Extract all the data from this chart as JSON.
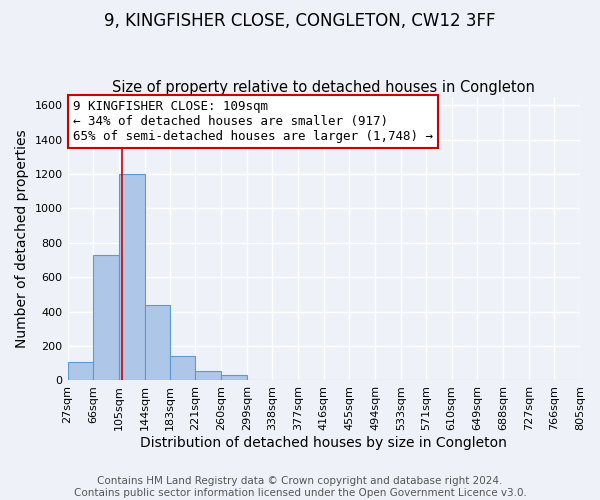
{
  "title": "9, KINGFISHER CLOSE, CONGLETON, CW12 3FF",
  "subtitle": "Size of property relative to detached houses in Congleton",
  "xlabel": "Distribution of detached houses by size in Congleton",
  "ylabel": "Number of detached properties",
  "bin_edges": [
    27,
    66,
    105,
    144,
    183,
    221,
    260,
    299,
    338,
    377,
    416,
    455,
    494,
    533,
    571,
    610,
    649,
    688,
    727,
    766,
    805
  ],
  "bin_heights": [
    110,
    730,
    1200,
    440,
    140,
    55,
    30,
    0,
    0,
    0,
    0,
    0,
    0,
    0,
    0,
    0,
    0,
    0,
    0,
    0
  ],
  "bar_color": "#aec6e8",
  "bar_edge_color": "#5b9bd5",
  "property_line_x": 109,
  "property_line_color": "#cc0000",
  "annotation_text": "9 KINGFISHER CLOSE: 109sqm\n← 34% of detached houses are smaller (917)\n65% of semi-detached houses are larger (1,748) →",
  "annotation_box_color": "#ffffff",
  "annotation_box_edge_color": "#cc0000",
  "ylim": [
    0,
    1650
  ],
  "tick_labels": [
    "27sqm",
    "66sqm",
    "105sqm",
    "144sqm",
    "183sqm",
    "221sqm",
    "260sqm",
    "299sqm",
    "338sqm",
    "377sqm",
    "416sqm",
    "455sqm",
    "494sqm",
    "533sqm",
    "571sqm",
    "610sqm",
    "649sqm",
    "688sqm",
    "727sqm",
    "766sqm",
    "805sqm"
  ],
  "footer1": "Contains HM Land Registry data © Crown copyright and database right 2024.",
  "footer2": "Contains public sector information licensed under the Open Government Licence v3.0.",
  "background_color": "#eef2f8",
  "grid_color": "#ffffff",
  "title_fontsize": 12,
  "subtitle_fontsize": 10.5,
  "axis_label_fontsize": 10,
  "tick_fontsize": 8,
  "annotation_fontsize": 9,
  "footer_fontsize": 7.5
}
